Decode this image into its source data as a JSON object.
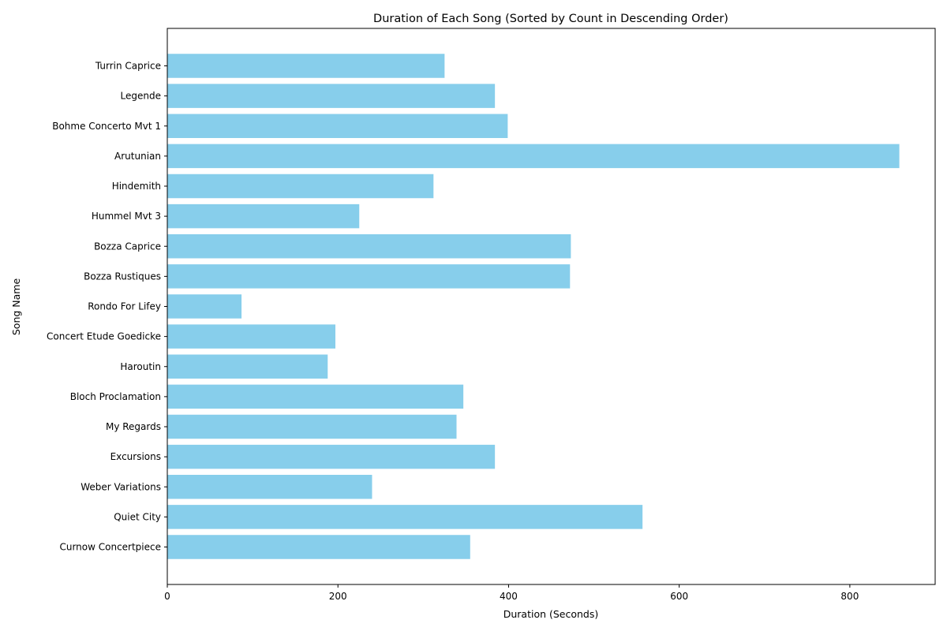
{
  "chart_data": {
    "type": "bar",
    "orientation": "horizontal",
    "title": "Duration of Each Song (Sorted by Count in Descending Order)",
    "xlabel": "Duration (Seconds)",
    "ylabel": "Song Name",
    "xlim": [
      0,
      900
    ],
    "xticks": [
      0,
      200,
      400,
      600,
      800
    ],
    "grid": false,
    "bar_color": "#87ceeb",
    "categories": [
      "Turrin Caprice",
      "Legende",
      "Bohme Concerto Mvt 1",
      "Arutunian",
      "Hindemith",
      "Hummel Mvt 3",
      "Bozza Caprice",
      "Bozza Rustiques",
      "Rondo For Lifey",
      "Concert Etude Goedicke",
      "Haroutin",
      "Bloch Proclamation",
      "My Regards",
      "Excursions",
      "Weber Variations",
      "Quiet City",
      "Curnow Concertpiece"
    ],
    "values": [
      325,
      384,
      399,
      858,
      312,
      225,
      473,
      472,
      87,
      197,
      188,
      347,
      339,
      384,
      240,
      557,
      355
    ]
  }
}
